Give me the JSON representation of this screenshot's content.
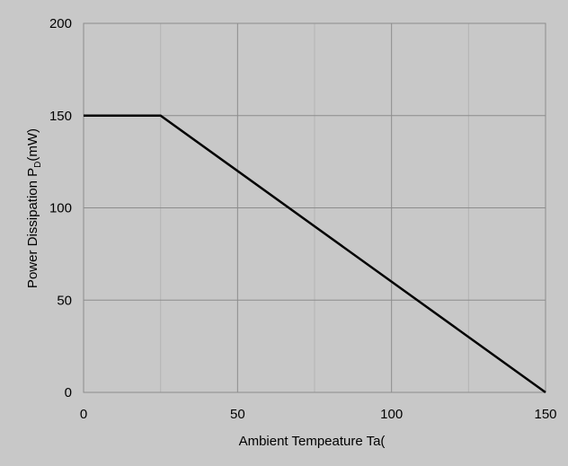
{
  "chart_data": {
    "type": "line",
    "title": "",
    "xlabel": "Ambient Tempeature Ta(",
    "ylabel_main": "Power Dissipation  P",
    "ylabel_sub": "D",
    "ylabel_tail": "(mW)",
    "xlim": [
      0,
      150
    ],
    "ylim": [
      0,
      200
    ],
    "x_ticks": [
      0,
      50,
      100,
      150
    ],
    "y_ticks": [
      0,
      50,
      100,
      150,
      200
    ],
    "x_minor_grid": [
      25,
      75,
      125
    ],
    "grid": true,
    "legend": "none",
    "series": [
      {
        "x": [
          0,
          25,
          150
        ],
        "y": [
          150,
          150,
          0
        ]
      }
    ],
    "colors": {
      "background": "#c8c8c8",
      "plot_area": "#c8c8c8",
      "major_grid": "#8c8c8c",
      "minor_grid": "#b4b4b4",
      "line": "#000000"
    }
  }
}
